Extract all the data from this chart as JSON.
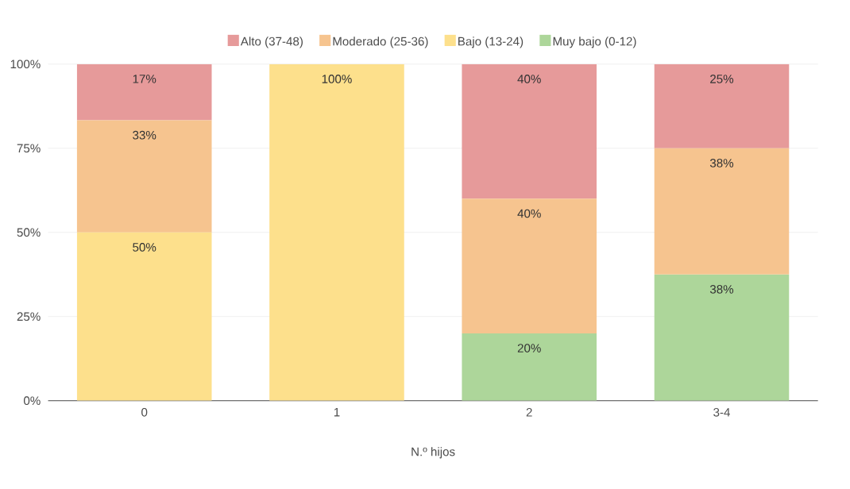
{
  "chart_data": {
    "type": "bar",
    "stacked": true,
    "xlabel": "N.º hijos",
    "categories": [
      "0",
      "1",
      "2",
      "3-4"
    ],
    "series": [
      {
        "name": "Muy bajo (0-12)",
        "color": "#add69a",
        "values": [
          0,
          0,
          20,
          37.5
        ],
        "value_labels": [
          null,
          null,
          "20%",
          "38%"
        ]
      },
      {
        "name": "Bajo (13-24)",
        "color": "#fde08c",
        "values": [
          50,
          100,
          0,
          0
        ],
        "value_labels": [
          "50%",
          "100%",
          null,
          null
        ]
      },
      {
        "name": "Moderado (25-36)",
        "color": "#f6c48f",
        "values": [
          33.3,
          0,
          40,
          37.5
        ],
        "value_labels": [
          "33%",
          null,
          "40%",
          "38%"
        ]
      },
      {
        "name": "Alto (37-48)",
        "color": "#e69a9a",
        "values": [
          16.7,
          0,
          40,
          25
        ],
        "value_labels": [
          "17%",
          null,
          "40%",
          "25%"
        ]
      }
    ],
    "ylim": [
      0,
      100
    ],
    "yticks": [
      {
        "value": 0,
        "label": "0%"
      },
      {
        "value": 25,
        "label": "25%"
      },
      {
        "value": 50,
        "label": "50%"
      },
      {
        "value": 75,
        "label": "75%"
      },
      {
        "value": 100,
        "label": "100%"
      }
    ],
    "grid": "y",
    "legend": "top"
  }
}
